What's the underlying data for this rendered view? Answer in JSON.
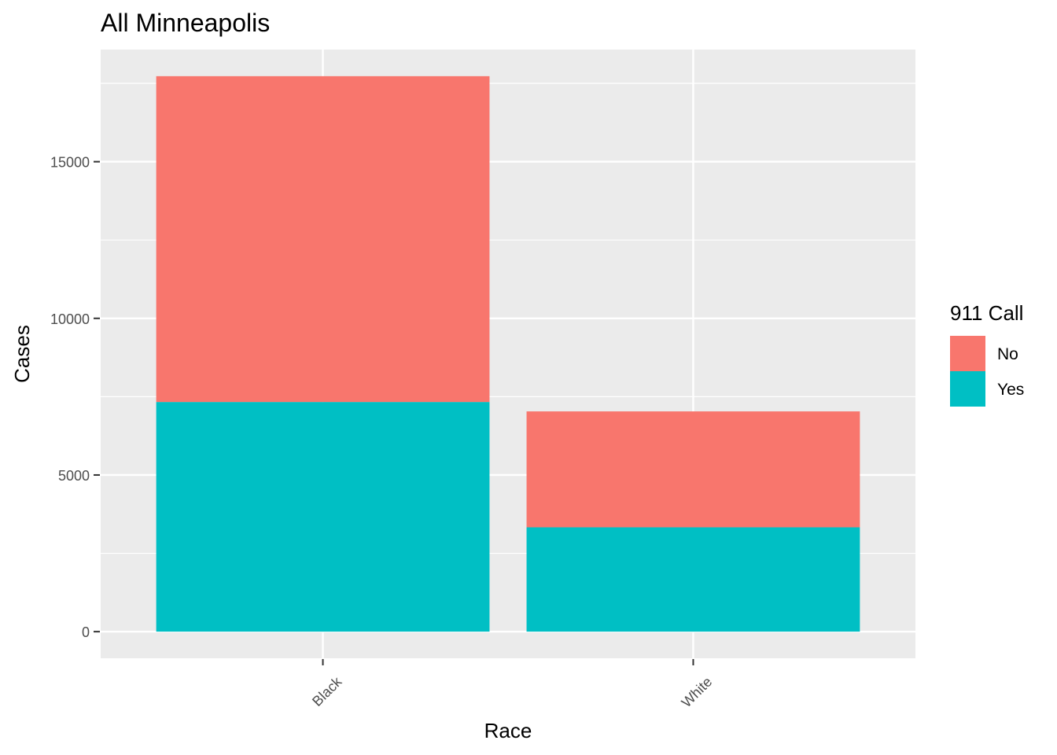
{
  "chart_data": {
    "type": "bar",
    "stacked": true,
    "title": "All Minneapolis",
    "xlabel": "Race",
    "ylabel": "Cases",
    "categories": [
      "Black",
      "White"
    ],
    "series": [
      {
        "name": "No",
        "values": [
          10400,
          3700
        ],
        "color": "#F8766D"
      },
      {
        "name": "Yes",
        "values": [
          7330,
          3330
        ],
        "color": "#00BFC4"
      }
    ],
    "ylim": [
      -850,
      18580
    ],
    "yticks": [
      0,
      5000,
      10000,
      15000
    ],
    "grid": true,
    "legend": {
      "title": "911 Call",
      "position": "right"
    },
    "panel_background": "#EBEBEB"
  }
}
